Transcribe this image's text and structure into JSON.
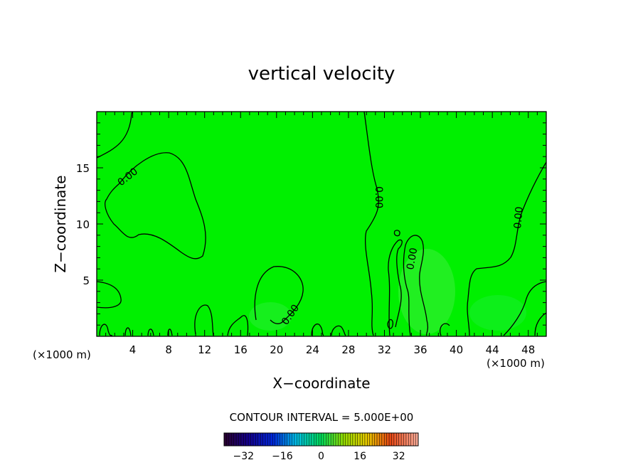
{
  "chart_data": {
    "type": "heatmap",
    "title": "vertical velocity",
    "xlabel": "X−coordinate",
    "ylabel": "Z−coordinate",
    "x_unit_left": "(×1000 m)",
    "x_unit_right": "(×1000 m)",
    "xlim": [
      0,
      50
    ],
    "ylim": [
      0,
      20
    ],
    "x_ticks": [
      4,
      8,
      12,
      16,
      20,
      24,
      28,
      32,
      36,
      40,
      44,
      48
    ],
    "x_tick_labels": [
      "4",
      "8",
      "12",
      "16",
      "20",
      "24",
      "28",
      "32",
      "36",
      "40",
      "44",
      "48"
    ],
    "y_ticks": [
      5,
      10,
      15
    ],
    "y_tick_labels": [
      "5",
      "10",
      "15"
    ],
    "contour_labels": [
      "0.00",
      "0.00",
      "0.00",
      "0.00",
      "0.00"
    ],
    "contour_interval_text": "CONTOUR INTERVAL = 5.000E+00",
    "colorbar": {
      "min": -40,
      "max": 40,
      "ticks": [
        -32,
        -16,
        0,
        16,
        32
      ],
      "tick_labels": [
        "−32",
        "−16",
        "0",
        "16",
        "32"
      ]
    },
    "field_color": "#00f000",
    "grid": false
  }
}
